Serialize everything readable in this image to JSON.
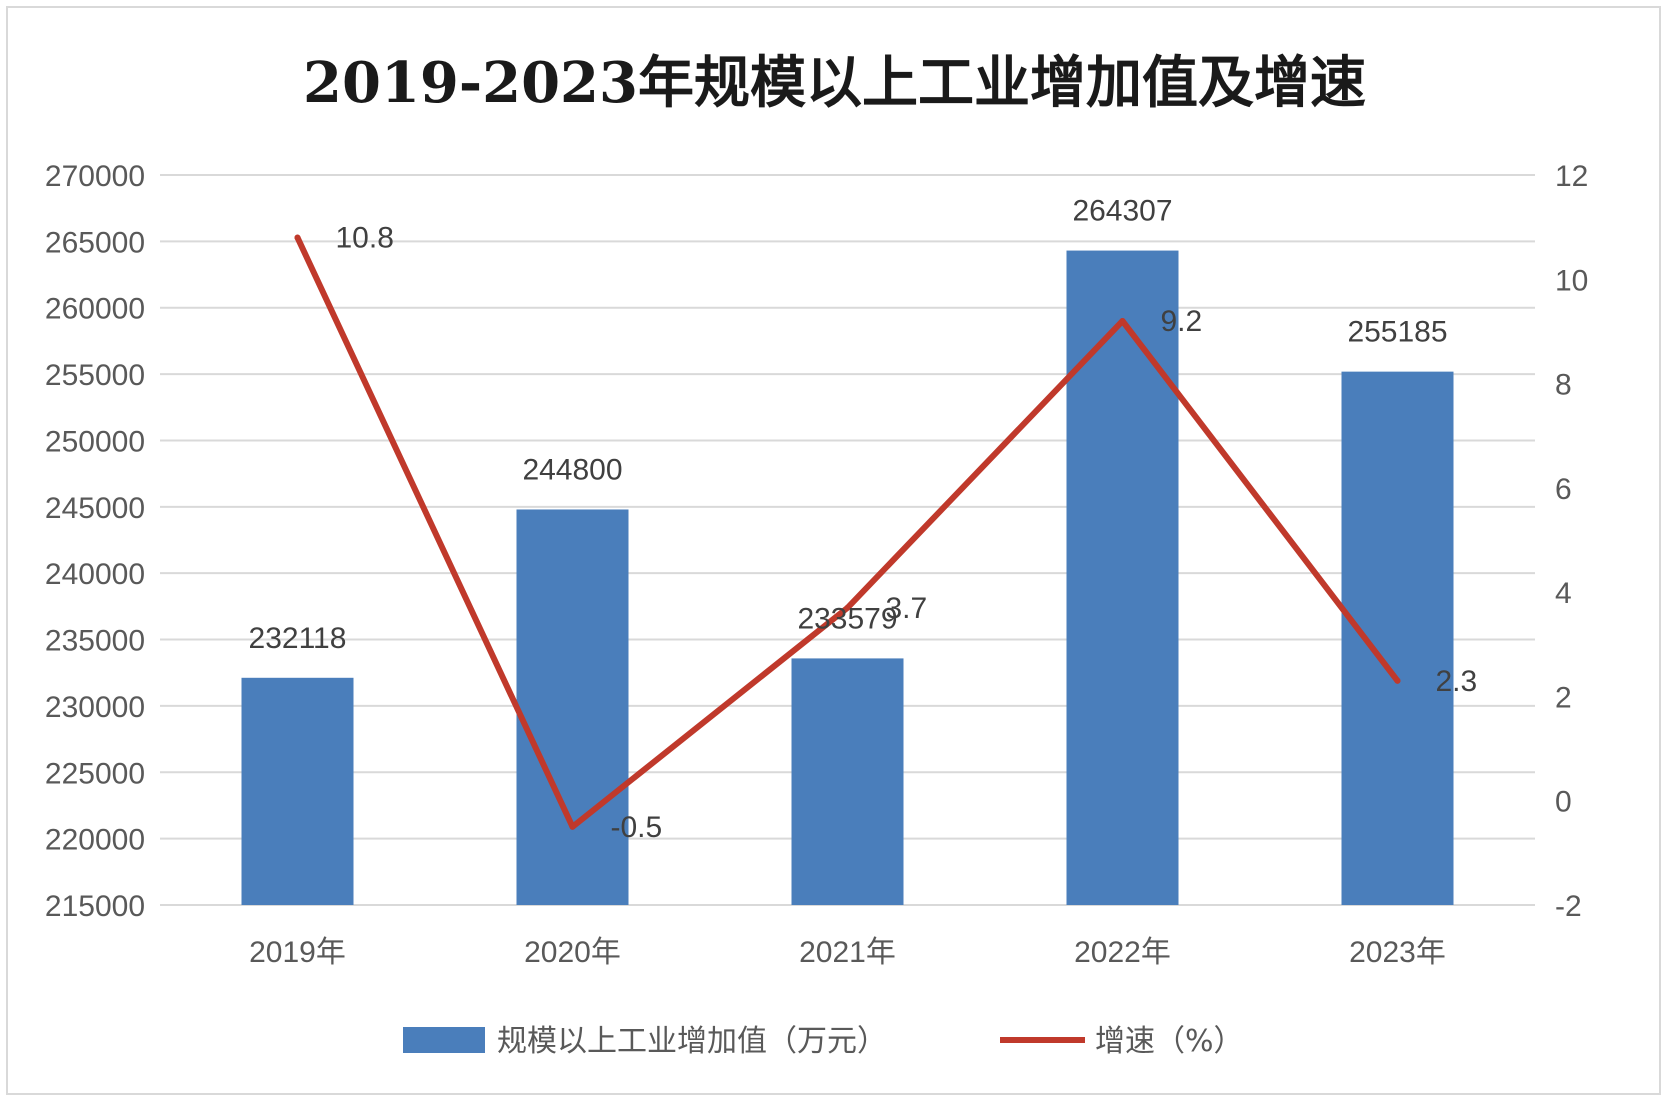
{
  "chart_data": {
    "type": "bar",
    "title": "2019-2023年规模以上工业增加值及增速",
    "categories": [
      "2019年",
      "2020年",
      "2021年",
      "2022年",
      "2023年"
    ],
    "series": [
      {
        "name": "规模以上工业增加值（万元）",
        "type": "bar",
        "axis": "left",
        "color": "#4a7ebb",
        "values": [
          232118,
          244800,
          233579,
          264307,
          255185
        ],
        "labels": [
          "232118",
          "244800",
          "233579",
          "264307",
          "255185"
        ]
      },
      {
        "name": "增速（%）",
        "type": "line",
        "axis": "right",
        "color": "#c0392b",
        "values": [
          10.8,
          -0.5,
          3.7,
          9.2,
          2.3
        ],
        "labels": [
          "10.8",
          "-0.5",
          "3.7",
          "9.2",
          "2.3"
        ]
      }
    ],
    "y_left": {
      "range": [
        215000,
        270000
      ],
      "ticks": [
        "215000",
        "220000",
        "225000",
        "230000",
        "235000",
        "240000",
        "245000",
        "250000",
        "255000",
        "260000",
        "265000",
        "270000"
      ]
    },
    "y_right": {
      "range": [
        -2,
        12
      ],
      "ticks": [
        "-2",
        "0",
        "2",
        "4",
        "6",
        "8",
        "10",
        "12"
      ]
    },
    "grid": true,
    "legend_position": "bottom"
  }
}
